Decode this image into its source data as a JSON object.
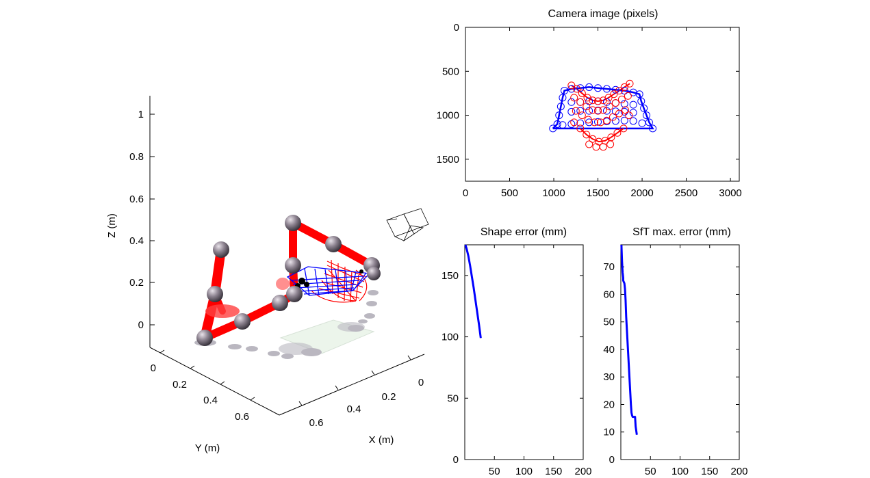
{
  "figure": {
    "panel3d": {
      "xlabel": "X (m)",
      "ylabel": "Y (m)",
      "zlabel": "Z (m)",
      "xticks": [
        "0",
        "0.2",
        "0.4",
        "0.6"
      ],
      "yticks": [
        "0",
        "0.2",
        "0.4",
        "0.6"
      ],
      "zticks": [
        "0",
        "0.2",
        "0.4",
        "0.6",
        "0.8",
        "1"
      ],
      "colors": {
        "robot": "#ff0000",
        "joint": "#8a7f8a",
        "shape_estimate": "#0000ff",
        "shape_true": "#ff0000"
      }
    }
  },
  "chart_data": [
    {
      "type": "scatter",
      "title": "Camera image (pixels)",
      "xlabel": "",
      "ylabel": "",
      "xlim": [
        0,
        3100
      ],
      "ylim": [
        1750,
        0
      ],
      "y_reversed": true,
      "xticks": [
        "0",
        "500",
        "1000",
        "1500",
        "2000",
        "2500",
        "3000"
      ],
      "yticks": [
        "0",
        "500",
        "1000",
        "1500"
      ],
      "grid": false,
      "series": [
        {
          "color": "#0000ff",
          "marker": "circle",
          "points": [
            [
              990,
              1150
            ],
            [
              1040,
              1100
            ],
            [
              1060,
              1000
            ],
            [
              1080,
              900
            ],
            [
              1100,
              800
            ],
            [
              1120,
              720
            ],
            [
              1200,
              700
            ],
            [
              1300,
              690
            ],
            [
              1400,
              680
            ],
            [
              1500,
              690
            ],
            [
              1600,
              700
            ],
            [
              1700,
              710
            ],
            [
              1800,
              720
            ],
            [
              1900,
              740
            ],
            [
              1970,
              760
            ],
            [
              1990,
              840
            ],
            [
              2020,
              920
            ],
            [
              2050,
              1000
            ],
            [
              2080,
              1080
            ],
            [
              2120,
              1150
            ],
            [
              1100,
              1110
            ],
            [
              1200,
              1100
            ],
            [
              1300,
              1090
            ],
            [
              1400,
              1080
            ],
            [
              1500,
              1075
            ],
            [
              1600,
              1070
            ],
            [
              1700,
              1065
            ],
            [
              1800,
              1060
            ],
            [
              1900,
              1065
            ],
            [
              2000,
              1090
            ],
            [
              1200,
              850
            ],
            [
              1300,
              850
            ],
            [
              1400,
              840
            ],
            [
              1500,
              840
            ],
            [
              1600,
              850
            ],
            [
              1700,
              860
            ],
            [
              1800,
              870
            ],
            [
              1900,
              880
            ],
            [
              1200,
              960
            ],
            [
              1300,
              950
            ],
            [
              1400,
              950
            ],
            [
              1500,
              945
            ],
            [
              1600,
              950
            ],
            [
              1700,
              955
            ],
            [
              1800,
              960
            ],
            [
              1900,
              970
            ]
          ]
        },
        {
          "color": "#ff0000",
          "marker": "circle",
          "points": [
            [
              1200,
              660
            ],
            [
              1260,
              700
            ],
            [
              1320,
              750
            ],
            [
              1380,
              800
            ],
            [
              1440,
              830
            ],
            [
              1500,
              840
            ],
            [
              1560,
              830
            ],
            [
              1620,
              800
            ],
            [
              1680,
              760
            ],
            [
              1740,
              720
            ],
            [
              1800,
              680
            ],
            [
              1860,
              640
            ],
            [
              1230,
              800
            ],
            [
              1300,
              850
            ],
            [
              1370,
              900
            ],
            [
              1440,
              940
            ],
            [
              1500,
              950
            ],
            [
              1560,
              940
            ],
            [
              1630,
              900
            ],
            [
              1700,
              860
            ],
            [
              1770,
              820
            ],
            [
              1840,
              780
            ],
            [
              1250,
              950
            ],
            [
              1320,
              1000
            ],
            [
              1390,
              1050
            ],
            [
              1460,
              1080
            ],
            [
              1530,
              1080
            ],
            [
              1600,
              1060
            ],
            [
              1670,
              1020
            ],
            [
              1740,
              980
            ],
            [
              1810,
              940
            ],
            [
              1300,
              1150
            ],
            [
              1370,
              1220
            ],
            [
              1440,
              1270
            ],
            [
              1510,
              1300
            ],
            [
              1580,
              1290
            ],
            [
              1650,
              1250
            ],
            [
              1720,
              1200
            ],
            [
              1790,
              1150
            ],
            [
              1400,
              1330
            ],
            [
              1480,
              1360
            ],
            [
              1560,
              1360
            ],
            [
              1640,
              1330
            ],
            [
              1230,
              1080
            ],
            [
              1850,
              1000
            ]
          ]
        }
      ]
    },
    {
      "type": "line",
      "title": "Shape error (mm)",
      "xlabel": "",
      "ylabel": "",
      "xlim": [
        0,
        200
      ],
      "ylim": [
        0,
        175
      ],
      "xticks": [
        "50",
        "100",
        "150",
        "200"
      ],
      "yticks": [
        "0",
        "50",
        "100",
        "150"
      ],
      "grid": false,
      "series": [
        {
          "color": "#0000ff",
          "x": [
            1,
            3,
            6,
            9,
            12,
            15,
            18,
            21,
            24,
            27
          ],
          "y": [
            175,
            172,
            166,
            158,
            149,
            140,
            130,
            120,
            110,
            99
          ]
        }
      ]
    },
    {
      "type": "line",
      "title": "SfT max. error (mm)",
      "xlabel": "",
      "ylabel": "",
      "xlim": [
        0,
        200
      ],
      "ylim": [
        0,
        78
      ],
      "xticks": [
        "50",
        "100",
        "150",
        "200"
      ],
      "yticks": [
        "0",
        "10",
        "20",
        "30",
        "40",
        "50",
        "60",
        "70"
      ],
      "grid": false,
      "series": [
        {
          "color": "#0000ff",
          "x": [
            1,
            2,
            3,
            4,
            4,
            6,
            7,
            8,
            9,
            10,
            11,
            12,
            13,
            14,
            15,
            16,
            17,
            18,
            19,
            20,
            24,
            25,
            27
          ],
          "y": [
            78,
            72,
            68,
            66,
            65,
            64,
            62,
            58,
            52,
            48,
            44,
            40,
            36,
            32,
            28,
            24,
            20,
            17,
            16,
            15.5,
            15.5,
            12,
            9
          ]
        }
      ]
    }
  ]
}
